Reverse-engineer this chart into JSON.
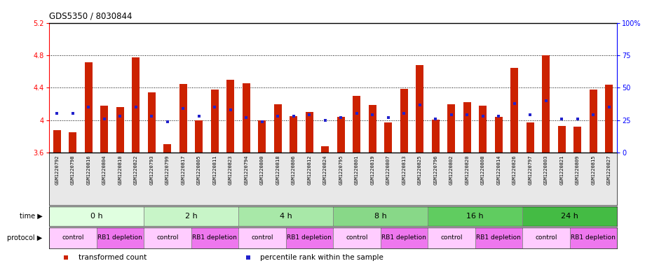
{
  "title": "GDS5350 / 8030844",
  "samples": [
    "GSM1220792",
    "GSM1220798",
    "GSM1220816",
    "GSM1220804",
    "GSM1220810",
    "GSM1220822",
    "GSM1220793",
    "GSM1220799",
    "GSM1220817",
    "GSM1220805",
    "GSM1220811",
    "GSM1220823",
    "GSM1220794",
    "GSM1220800",
    "GSM1220818",
    "GSM1220806",
    "GSM1220812",
    "GSM1220824",
    "GSM1220795",
    "GSM1220801",
    "GSM1220819",
    "GSM1220807",
    "GSM1220813",
    "GSM1220825",
    "GSM1220796",
    "GSM1220802",
    "GSM1220820",
    "GSM1220808",
    "GSM1220814",
    "GSM1220826",
    "GSM1220797",
    "GSM1220803",
    "GSM1220821",
    "GSM1220809",
    "GSM1220815",
    "GSM1220827"
  ],
  "bar_values": [
    3.88,
    3.85,
    4.72,
    4.18,
    4.16,
    4.78,
    4.34,
    3.7,
    4.45,
    4.0,
    4.38,
    4.5,
    4.46,
    4.0,
    4.2,
    4.05,
    4.1,
    3.68,
    4.04,
    4.3,
    4.19,
    3.97,
    4.39,
    4.68,
    4.01,
    4.2,
    4.22,
    4.18,
    4.04,
    4.65,
    3.97,
    4.8,
    3.93,
    3.92,
    4.38,
    4.44
  ],
  "percentile_values": [
    30,
    30,
    35,
    26,
    28,
    35,
    28,
    24,
    34,
    28,
    35,
    33,
    27,
    24,
    28,
    28,
    29,
    25,
    27,
    30,
    29,
    27,
    30,
    37,
    26,
    29,
    29,
    28,
    28,
    38,
    29,
    40,
    26,
    26,
    29,
    35
  ],
  "bar_color": "#cc2200",
  "percentile_color": "#2222cc",
  "ylim_left": [
    3.6,
    5.2
  ],
  "ylim_right": [
    0,
    100
  ],
  "yticks_left": [
    3.6,
    4.0,
    4.4,
    4.8,
    5.2
  ],
  "ytick_labels_left": [
    "3.6",
    "4",
    "4.4",
    "4.8",
    "5.2"
  ],
  "yticks_right": [
    0,
    25,
    50,
    75,
    100
  ],
  "ytick_labels_right": [
    "0",
    "25",
    "50",
    "75",
    "100%"
  ],
  "grid_values": [
    4.0,
    4.4,
    4.8
  ],
  "time_groups": [
    {
      "label": "0 h",
      "start": 0,
      "end": 6,
      "color": "#e0ffe0"
    },
    {
      "label": "2 h",
      "start": 6,
      "end": 12,
      "color": "#c8f5c8"
    },
    {
      "label": "4 h",
      "start": 12,
      "end": 18,
      "color": "#a8e8a8"
    },
    {
      "label": "8 h",
      "start": 18,
      "end": 24,
      "color": "#88d888"
    },
    {
      "label": "16 h",
      "start": 24,
      "end": 30,
      "color": "#60cc60"
    },
    {
      "label": "24 h",
      "start": 30,
      "end": 36,
      "color": "#44bb44"
    }
  ],
  "protocol_groups": [
    {
      "label": "control",
      "start": 0,
      "end": 3,
      "color": "#ffccff"
    },
    {
      "label": "RB1 depletion",
      "start": 3,
      "end": 6,
      "color": "#ee77ee"
    },
    {
      "label": "control",
      "start": 6,
      "end": 9,
      "color": "#ffccff"
    },
    {
      "label": "RB1 depletion",
      "start": 9,
      "end": 12,
      "color": "#ee77ee"
    },
    {
      "label": "control",
      "start": 12,
      "end": 15,
      "color": "#ffccff"
    },
    {
      "label": "RB1 depletion",
      "start": 15,
      "end": 18,
      "color": "#ee77ee"
    },
    {
      "label": "control",
      "start": 18,
      "end": 21,
      "color": "#ffccff"
    },
    {
      "label": "RB1 depletion",
      "start": 21,
      "end": 24,
      "color": "#ee77ee"
    },
    {
      "label": "control",
      "start": 24,
      "end": 27,
      "color": "#ffccff"
    },
    {
      "label": "RB1 depletion",
      "start": 27,
      "end": 30,
      "color": "#ee77ee"
    },
    {
      "label": "control",
      "start": 30,
      "end": 33,
      "color": "#ffccff"
    },
    {
      "label": "RB1 depletion",
      "start": 33,
      "end": 36,
      "color": "#ee77ee"
    }
  ],
  "legend_items": [
    {
      "label": "transformed count",
      "color": "#cc2200"
    },
    {
      "label": "percentile rank within the sample",
      "color": "#2222cc"
    }
  ],
  "label_time": "time",
  "label_protocol": "protocol",
  "bg_color": "#ffffff"
}
